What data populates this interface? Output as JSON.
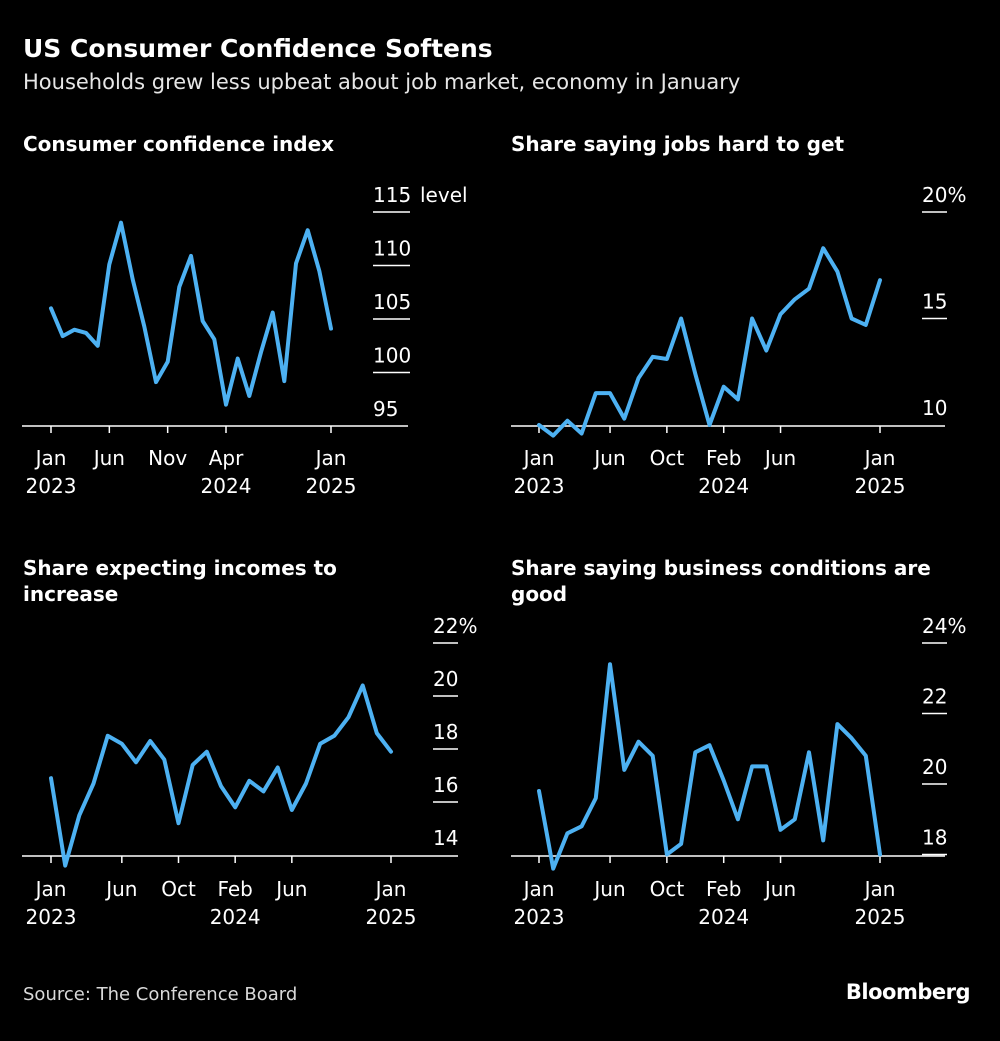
{
  "header": {
    "title": "US Consumer Confidence Softens",
    "subtitle": "Households grew less upbeat about job market, economy in January"
  },
  "footer": {
    "source": "Source: The Conference Board",
    "logo": "Bloomberg"
  },
  "colors": {
    "background": "#000000",
    "line": "#4db1f2",
    "text": "#ffffff",
    "gridline": "#ffffff"
  },
  "chart_data": [
    {
      "type": "line",
      "title": "Consumer confidence index",
      "ylabel": "level",
      "ylim": [
        92,
        115
      ],
      "yticks": [
        {
          "value": 115,
          "label": "115"
        },
        {
          "value": 110,
          "label": "110"
        },
        {
          "value": 105,
          "label": "105"
        },
        {
          "value": 100,
          "label": "100"
        },
        {
          "value": 95,
          "label": "95"
        }
      ],
      "xticks": [
        {
          "index": 0,
          "label": "Jan",
          "sub": "2023"
        },
        {
          "index": 5,
          "label": "Jun",
          "sub": ""
        },
        {
          "index": 10,
          "label": "Nov",
          "sub": ""
        },
        {
          "index": 15,
          "label": "Apr",
          "sub": "2024"
        },
        {
          "index": 24,
          "label": "Jan",
          "sub": "2025"
        }
      ],
      "x": [
        "Jan 2023",
        "Feb 2023",
        "Mar 2023",
        "Apr 2023",
        "May 2023",
        "Jun 2023",
        "Jul 2023",
        "Aug 2023",
        "Sep 2023",
        "Oct 2023",
        "Nov 2023",
        "Dec 2023",
        "Jan 2024",
        "Feb 2024",
        "Mar 2024",
        "Apr 2024",
        "May 2024",
        "Jun 2024",
        "Jul 2024",
        "Aug 2024",
        "Sep 2024",
        "Oct 2024",
        "Nov 2024",
        "Dec 2024",
        "Jan 2025"
      ],
      "series": [
        {
          "name": "Consumer confidence index",
          "values": [
            106.0,
            103.4,
            104.0,
            103.7,
            102.5,
            110.1,
            114.0,
            108.7,
            104.3,
            99.1,
            101.0,
            108.0,
            110.9,
            104.8,
            103.1,
            97.0,
            101.3,
            97.8,
            101.9,
            105.6,
            99.2,
            110.2,
            113.3,
            109.5,
            104.1
          ]
        }
      ]
    },
    {
      "type": "line",
      "title": "Share saying jobs hard to get",
      "ylabel": "%",
      "ylim": [
        9,
        20
      ],
      "yticks": [
        {
          "value": 20,
          "label": "20%"
        },
        {
          "value": 15,
          "label": "15"
        },
        {
          "value": 10,
          "label": "10"
        }
      ],
      "xticks": [
        {
          "index": 0,
          "label": "Jan",
          "sub": "2023"
        },
        {
          "index": 5,
          "label": "Jun",
          "sub": ""
        },
        {
          "index": 9,
          "label": "Oct",
          "sub": ""
        },
        {
          "index": 13,
          "label": "Feb",
          "sub": "2024"
        },
        {
          "index": 17,
          "label": "Jun",
          "sub": ""
        },
        {
          "index": 24,
          "label": "Jan",
          "sub": "2025"
        }
      ],
      "x": [
        "Jan 2023",
        "Feb 2023",
        "Mar 2023",
        "Apr 2023",
        "May 2023",
        "Jun 2023",
        "Jul 2023",
        "Aug 2023",
        "Sep 2023",
        "Oct 2023",
        "Nov 2023",
        "Dec 2023",
        "Jan 2024",
        "Feb 2024",
        "Mar 2024",
        "Apr 2024",
        "May 2024",
        "Jun 2024",
        "Jul 2024",
        "Aug 2024",
        "Sep 2024",
        "Oct 2024",
        "Nov 2024",
        "Dec 2024",
        "Jan 2025"
      ],
      "series": [
        {
          "name": "Jobs hard to get",
          "values": [
            10.0,
            9.5,
            10.2,
            9.6,
            11.5,
            11.5,
            10.3,
            12.2,
            13.2,
            13.1,
            15.0,
            12.4,
            10.0,
            11.8,
            11.2,
            15.0,
            13.5,
            15.2,
            15.9,
            16.4,
            18.3,
            17.2,
            15.0,
            14.7,
            16.8
          ]
        }
      ]
    },
    {
      "type": "line",
      "title": "Share expecting incomes to increase",
      "ylabel": "%",
      "ylim": [
        13.2,
        22
      ],
      "yticks": [
        {
          "value": 22,
          "label": "22%"
        },
        {
          "value": 20,
          "label": "20"
        },
        {
          "value": 18,
          "label": "18"
        },
        {
          "value": 16,
          "label": "16"
        },
        {
          "value": 14,
          "label": "14"
        }
      ],
      "xticks": [
        {
          "index": 0,
          "label": "Jan",
          "sub": "2023"
        },
        {
          "index": 5,
          "label": "Jun",
          "sub": ""
        },
        {
          "index": 9,
          "label": "Oct",
          "sub": ""
        },
        {
          "index": 13,
          "label": "Feb",
          "sub": "2024"
        },
        {
          "index": 17,
          "label": "Jun",
          "sub": ""
        },
        {
          "index": 24,
          "label": "Jan",
          "sub": "2025"
        }
      ],
      "x": [
        "Jan 2023",
        "Feb 2023",
        "Mar 2023",
        "Apr 2023",
        "May 2023",
        "Jun 2023",
        "Jul 2023",
        "Aug 2023",
        "Sep 2023",
        "Oct 2023",
        "Nov 2023",
        "Dec 2023",
        "Jan 2024",
        "Feb 2024",
        "Mar 2024",
        "Apr 2024",
        "May 2024",
        "Jun 2024",
        "Jul 2024",
        "Aug 2024",
        "Sep 2024",
        "Oct 2024",
        "Nov 2024",
        "Dec 2024",
        "Jan 2025"
      ],
      "series": [
        {
          "name": "Expect incomes to increase",
          "values": [
            16.9,
            13.6,
            15.5,
            16.7,
            18.5,
            18.2,
            17.5,
            18.3,
            17.6,
            15.2,
            17.4,
            17.9,
            16.6,
            15.8,
            16.8,
            16.4,
            17.3,
            15.7,
            16.7,
            18.2,
            18.5,
            19.2,
            20.4,
            18.6,
            17.9
          ]
        }
      ]
    },
    {
      "type": "line",
      "title": "Share saying business conditions are good",
      "ylabel": "%",
      "ylim": [
        17.6,
        24
      ],
      "yticks": [
        {
          "value": 24,
          "label": "24%"
        },
        {
          "value": 22,
          "label": "22"
        },
        {
          "value": 20,
          "label": "20"
        },
        {
          "value": 18,
          "label": "18"
        }
      ],
      "xticks": [
        {
          "index": 0,
          "label": "Jan",
          "sub": "2023"
        },
        {
          "index": 5,
          "label": "Jun",
          "sub": ""
        },
        {
          "index": 9,
          "label": "Oct",
          "sub": ""
        },
        {
          "index": 13,
          "label": "Feb",
          "sub": "2024"
        },
        {
          "index": 17,
          "label": "Jun",
          "sub": ""
        },
        {
          "index": 24,
          "label": "Jan",
          "sub": "2025"
        }
      ],
      "x": [
        "Jan 2023",
        "Feb 2023",
        "Mar 2023",
        "Apr 2023",
        "May 2023",
        "Jun 2023",
        "Jul 2023",
        "Aug 2023",
        "Sep 2023",
        "Oct 2023",
        "Nov 2023",
        "Dec 2023",
        "Jan 2024",
        "Feb 2024",
        "Mar 2024",
        "Apr 2024",
        "May 2024",
        "Jun 2024",
        "Jul 2024",
        "Aug 2024",
        "Sep 2024",
        "Oct 2024",
        "Nov 2024",
        "Dec 2024",
        "Jan 2025"
      ],
      "series": [
        {
          "name": "Business conditions good",
          "values": [
            19.8,
            17.6,
            18.6,
            18.8,
            19.6,
            23.4,
            20.4,
            21.2,
            20.8,
            18.0,
            18.3,
            20.9,
            21.1,
            20.1,
            19.0,
            20.5,
            20.5,
            18.7,
            19.0,
            20.9,
            18.4,
            21.7,
            21.3,
            20.8,
            18.0
          ]
        }
      ]
    }
  ]
}
